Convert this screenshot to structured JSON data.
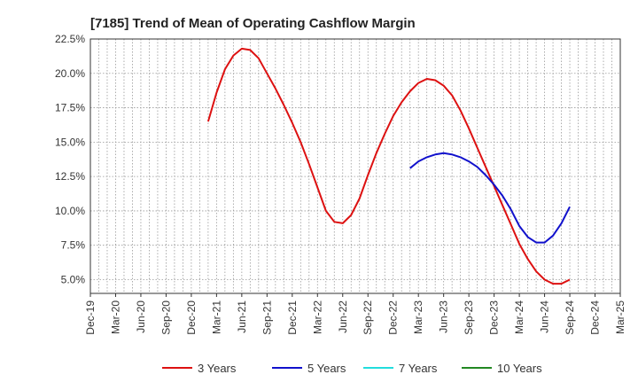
{
  "chart_data": {
    "type": "line",
    "title": "[7185]  Trend of Mean of Operating Cashflow Margin",
    "xlabel": "",
    "ylabel": "",
    "x_ticks": [
      "Dec-19",
      "Mar-20",
      "Jun-20",
      "Sep-20",
      "Dec-20",
      "Mar-21",
      "Jun-21",
      "Sep-21",
      "Dec-21",
      "Mar-22",
      "Jun-22",
      "Sep-22",
      "Dec-22",
      "Mar-23",
      "Jun-23",
      "Sep-23",
      "Dec-23",
      "Mar-24",
      "Jun-24",
      "Sep-24",
      "Dec-24",
      "Mar-25"
    ],
    "y_ticks": [
      "5.0%",
      "7.5%",
      "10.0%",
      "12.5%",
      "15.0%",
      "17.5%",
      "20.0%",
      "22.5%"
    ],
    "ylim": [
      4.0,
      22.5
    ],
    "y_unit": "%",
    "grid": true,
    "legend_position": "bottom",
    "series": [
      {
        "name": "3 Years",
        "color": "#dd1111",
        "x": [
          "Feb-21",
          "Mar-21",
          "Apr-21",
          "May-21",
          "Jun-21",
          "Jul-21",
          "Aug-21",
          "Sep-21",
          "Oct-21",
          "Nov-21",
          "Dec-21",
          "Jan-22",
          "Feb-22",
          "Mar-22",
          "Apr-22",
          "May-22",
          "Jun-22",
          "Jul-22",
          "Aug-22",
          "Sep-22",
          "Oct-22",
          "Nov-22",
          "Dec-22",
          "Jan-23",
          "Feb-23",
          "Mar-23",
          "Apr-23",
          "May-23",
          "Jun-23",
          "Jul-23",
          "Aug-23",
          "Sep-23",
          "Oct-23",
          "Nov-23",
          "Dec-23",
          "Jan-24",
          "Feb-24",
          "Mar-24",
          "Apr-24",
          "May-24",
          "Jun-24",
          "Jul-24",
          "Aug-24",
          "Sep-24"
        ],
        "values": [
          16.5,
          18.6,
          20.3,
          21.3,
          21.8,
          21.7,
          21.1,
          20.0,
          18.9,
          17.7,
          16.4,
          15.0,
          13.4,
          11.7,
          10.0,
          9.2,
          9.1,
          9.7,
          10.9,
          12.6,
          14.2,
          15.6,
          16.9,
          17.9,
          18.7,
          19.3,
          19.6,
          19.5,
          19.1,
          18.4,
          17.3,
          16.0,
          14.6,
          13.2,
          11.8,
          10.4,
          9.0,
          7.6,
          6.5,
          5.6,
          5.0,
          4.7,
          4.7,
          5.0
        ]
      },
      {
        "name": "5 Years",
        "color": "#1111cc",
        "x": [
          "Feb-23",
          "Mar-23",
          "Apr-23",
          "May-23",
          "Jun-23",
          "Jul-23",
          "Aug-23",
          "Sep-23",
          "Oct-23",
          "Nov-23",
          "Dec-23",
          "Jan-24",
          "Feb-24",
          "Mar-24",
          "Apr-24",
          "May-24",
          "Jun-24",
          "Jul-24",
          "Aug-24",
          "Sep-24"
        ],
        "values": [
          13.1,
          13.6,
          13.9,
          14.1,
          14.2,
          14.1,
          13.9,
          13.6,
          13.2,
          12.6,
          11.9,
          11.1,
          10.1,
          8.9,
          8.1,
          7.7,
          7.7,
          8.2,
          9.1,
          10.3
        ]
      },
      {
        "name": "7 Years",
        "color": "#22dddd",
        "x": [],
        "values": []
      },
      {
        "name": "10 Years",
        "color": "#228822",
        "x": [],
        "values": []
      }
    ]
  }
}
